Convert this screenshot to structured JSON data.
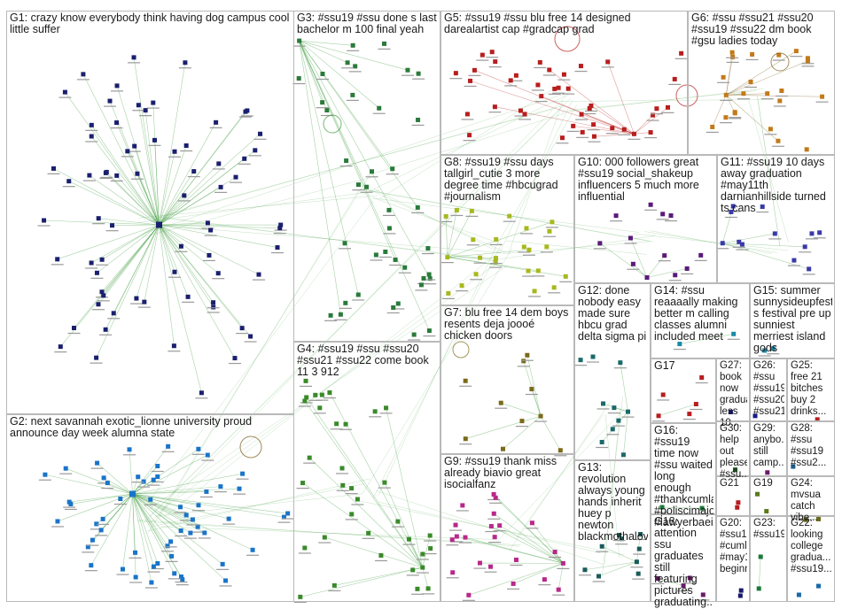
{
  "groups": [
    {
      "id": "G1",
      "title": "G1: crazy know everybody think having dog campus cool little suffer",
      "color": "#1a1f6e",
      "edge": "#3a9a3a"
    },
    {
      "id": "G2",
      "title": "G2: next savannah exotic_lionne university proud announce day week alumna state",
      "color": "#1a74c8",
      "edge": "#3a9a3a"
    },
    {
      "id": "G3",
      "title": "G3: #ssu19 #ssu done s last bachelor m 100 final yeah",
      "color": "#2b7a3b",
      "edge": "#3a9a3a"
    },
    {
      "id": "G4",
      "title": "G4: #ssu19 #ssu #ssu20 #ssu21 #ssu22 come book 11 3 912",
      "color": "#3a8a2a",
      "edge": "#3a9a3a"
    },
    {
      "id": "G5",
      "title": "G5: #ssu19 #ssu blu free 14 designed darealartist cap #gradcap grad",
      "color": "#b81e1e",
      "edge": "#b81e1e"
    },
    {
      "id": "G6",
      "title": "G6: #ssu #ssu21 #ssu20 #ssu19 #ssu22 dm book #gsu ladies today",
      "color": "#c27a1a",
      "edge": "#7a5a1a"
    },
    {
      "id": "G7",
      "title": "G7: blu free 14 dem boys resents deja joooé chicken doors",
      "color": "#7a6a1a",
      "edge": "#3a9a3a"
    },
    {
      "id": "G8",
      "title": "G8: #ssu19 #ssu days tallgirl_cutie 3 more degree time #hbcugrad #journalism",
      "color": "#a8b81e",
      "edge": "#3a9a3a"
    },
    {
      "id": "G9",
      "title": "G9: #ssu19 thank miss already biavio great isocialfanz",
      "color": "#b8288a",
      "edge": "#3a9a3a"
    },
    {
      "id": "G10",
      "title": "G10: 000 followers great #ssu19 social_shakeup influencers 5 much more influential",
      "color": "#5a1a7a",
      "edge": "#3a9a3a"
    },
    {
      "id": "G11",
      "title": "G11: #ssu19 10 days away graduation #may11th darnianhillside turned ts cans",
      "color": "#3a3aa8",
      "edge": "#3a9a3a"
    },
    {
      "id": "G12",
      "title": "G12: done nobody easy made sure hbcu grad delta sigma pi",
      "color": "#1a6a6a",
      "edge": "#3a9a3a"
    },
    {
      "id": "G13",
      "title": "G13: revolution always young hands inherit huey p newton blackmothalova",
      "color": "#1a5a5a",
      "edge": "#3a9a3a"
    },
    {
      "id": "G14",
      "title": "G14: #ssu reaaaally making better m calling classes alumni included meet",
      "color": "#1a8aa8",
      "edge": "#3a9a3a"
    },
    {
      "id": "G15",
      "title": "G15: summer sunnysideupfest s festival pre up sunniest merriest island gods",
      "color": "#1a8aa8",
      "edge": "#3a9a3a"
    },
    {
      "id": "G16",
      "title": "G16: #ssu19 time now #ssu waited long enough #thankcumla... #poliscimajors #lawyerbaein...",
      "color": "#1a7a3a",
      "edge": "#3a9a3a"
    },
    {
      "id": "G17",
      "title": "G17",
      "color": "#b81e1e",
      "edge": "#3a9a3a"
    },
    {
      "id": "G18",
      "title": "G18: attention ssu graduates still featuring pictures graduating...",
      "color": "#6a1a6a",
      "edge": "#3a9a3a"
    },
    {
      "id": "G19",
      "title": "G19",
      "color": "#5a7a1a",
      "edge": "#3a9a3a"
    },
    {
      "id": "G20",
      "title": "G20: #ssu19 #cuml... #may1... beginn...",
      "color": "#1a1a6a",
      "edge": "#3a9a3a"
    },
    {
      "id": "G21",
      "title": "G21",
      "color": "#b81e1e",
      "edge": "#3a9a3a"
    },
    {
      "id": "G22",
      "title": "G22: looking college gradua... #ssu19...",
      "color": "#1a6aa8",
      "edge": "#3a9a3a"
    },
    {
      "id": "G23",
      "title": "G23: #ssu19",
      "color": "#1a7a3a",
      "edge": "#3a9a3a"
    },
    {
      "id": "G24",
      "title": "G24: mvsua catch vibe...",
      "color": "#6a6a1a",
      "edge": "#3a9a3a"
    },
    {
      "id": "G25",
      "title": "G25: free 21 bitches buy 2 drinks...",
      "color": "#b81e1e",
      "edge": "#3a9a3a"
    },
    {
      "id": "G26",
      "title": "G26: #ssu #ssu19 #ssu20 #ssu21",
      "color": "#1a1a8a",
      "edge": "#3a9a3a"
    },
    {
      "id": "G27",
      "title": "G27: book now gradua... less 10...",
      "color": "#1a1a6a",
      "edge": "#3a9a3a"
    },
    {
      "id": "G28",
      "title": "G28: #ssu #ssu19 #ssu2...",
      "color": "#1a5a8a",
      "edge": "#3a9a3a"
    },
    {
      "id": "G29",
      "title": "G29: anybo... still camp...",
      "color": "#6a1a6a",
      "edge": "#3a9a3a"
    },
    {
      "id": "G30",
      "title": "G30: help out please #ssu...",
      "color": "#1a4a1a",
      "edge": "#3a9a3a"
    }
  ]
}
